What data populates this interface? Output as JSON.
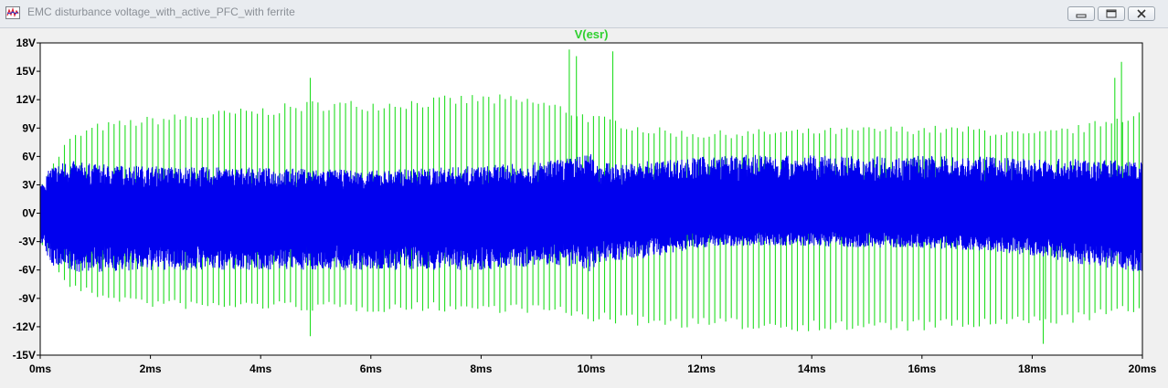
{
  "window": {
    "title": "EMC disturbance voltage_with_active_PFC_with ferrite",
    "controls": [
      "minimize",
      "restore",
      "close"
    ]
  },
  "chart_data": {
    "type": "line",
    "title": "V(esr)",
    "title_color": "#2fd02f",
    "xlabel": "",
    "ylabel": "",
    "x_unit": "ms",
    "y_unit": "V",
    "xlim": [
      0,
      20
    ],
    "ylim": [
      -15,
      18
    ],
    "xticks": [
      0,
      2,
      4,
      6,
      8,
      10,
      12,
      14,
      16,
      18,
      20
    ],
    "xtick_labels": [
      "0ms",
      "2ms",
      "4ms",
      "6ms",
      "8ms",
      "10ms",
      "12ms",
      "14ms",
      "16ms",
      "18ms",
      "20ms"
    ],
    "yticks": [
      18,
      15,
      12,
      9,
      6,
      3,
      0,
      -3,
      -6,
      -9,
      -12,
      -15
    ],
    "ytick_labels": [
      "18V",
      "15V",
      "12V",
      "9V",
      "6V",
      "3V",
      "0V",
      "-3V",
      "-6V",
      "-9V",
      "-12V",
      "-15V"
    ],
    "grid": false,
    "series": [
      {
        "name": "V(esr)",
        "color": "#22dd22",
        "style": "spike",
        "spike_interval_ms": 0.1,
        "x": [
          0,
          0.3,
          0.5,
          1,
          2,
          3,
          4,
          5,
          6,
          7,
          8,
          9,
          9.5,
          10,
          10.5,
          11,
          12,
          13,
          14,
          15,
          16,
          17,
          18,
          19,
          19.5,
          20
        ],
        "upper": [
          3,
          6,
          8,
          9.5,
          10.3,
          10.8,
          11.3,
          12,
          12,
          12.3,
          12.7,
          12.3,
          11.5,
          10.5,
          10,
          9.2,
          8.7,
          8.9,
          9,
          9.2,
          9.3,
          9.2,
          8.6,
          9.5,
          10.5,
          11
        ],
        "lower": [
          -3,
          -6,
          -8,
          -9,
          -10,
          -10.3,
          -10.2,
          -10.4,
          -10.5,
          -10.4,
          -10.5,
          -10.6,
          -11,
          -11.5,
          -11.8,
          -12,
          -12.2,
          -12.4,
          -12.5,
          -12.6,
          -12.5,
          -12.3,
          -12,
          -11.5,
          -11,
          -10.5
        ],
        "peaks": [
          {
            "x": 4.9,
            "y": 14.3
          },
          {
            "x": 4.9,
            "y": -13
          },
          {
            "x": 9.6,
            "y": 17.3
          },
          {
            "x": 9.73,
            "y": 16.6
          },
          {
            "x": 10.39,
            "y": 17.1
          },
          {
            "x": 18.2,
            "y": -13.8
          },
          {
            "x": 19.62,
            "y": 16
          },
          {
            "x": 19.5,
            "y": 14.3
          }
        ]
      },
      {
        "name": "",
        "color": "#0000ee",
        "style": "band",
        "x": [
          0,
          0.2,
          0.5,
          1,
          2,
          3,
          4,
          5,
          6,
          7,
          8,
          9,
          9.5,
          10,
          10.1,
          10.5,
          11,
          12,
          13,
          14,
          15,
          16,
          17,
          18,
          19,
          20
        ],
        "upper": [
          3,
          5,
          5.6,
          5.2,
          5,
          4.9,
          4.8,
          4.7,
          4.5,
          4.8,
          5,
          5.4,
          5.8,
          6.3,
          5.5,
          5.2,
          5.5,
          6,
          6.2,
          6.1,
          6,
          6.1,
          6,
          5.8,
          5.7,
          5.5
        ],
        "lower": [
          -3,
          -5.5,
          -6.3,
          -6.2,
          -6.1,
          -6,
          -6,
          -6,
          -6.1,
          -6,
          -6,
          -5.6,
          -5.5,
          -6.2,
          -5.2,
          -5,
          -4.8,
          -3.6,
          -3.4,
          -3.5,
          -3.6,
          -3.7,
          -3.9,
          -4.5,
          -5.5,
          -6.3
        ]
      }
    ]
  }
}
